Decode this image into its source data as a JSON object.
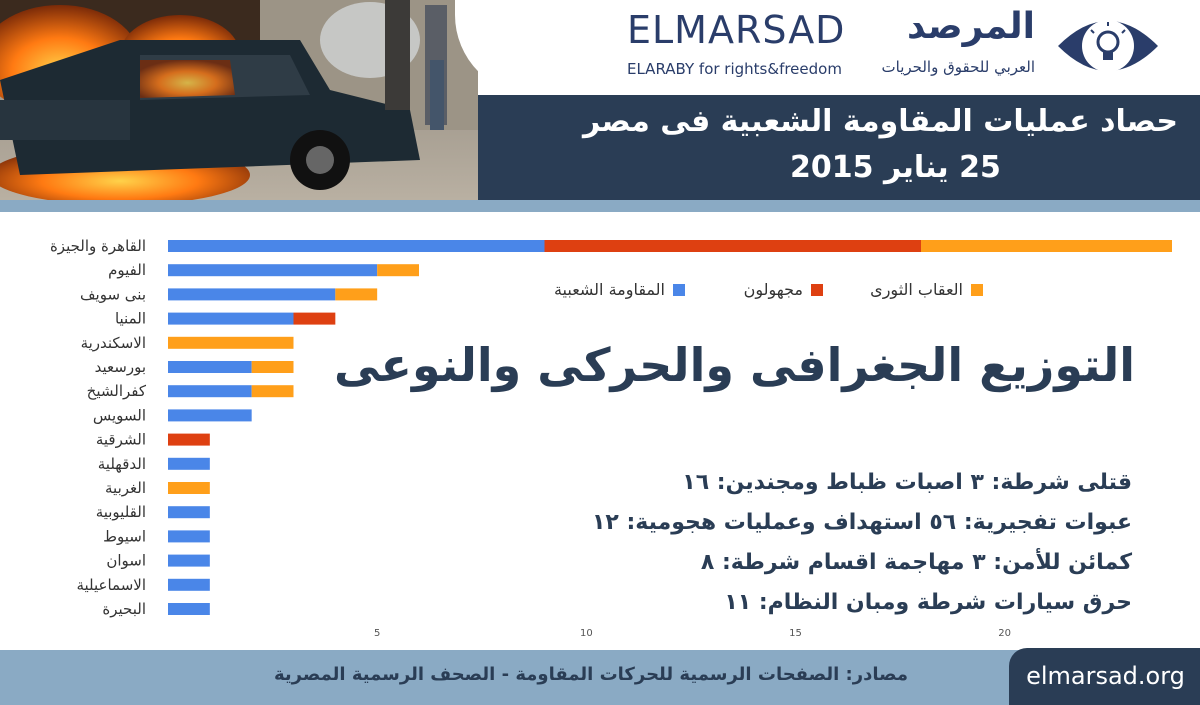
{
  "header": {
    "brand_en": "ELMARSAD",
    "brand_en_sub": "ELARABY for rights&freedom",
    "brand_ar": "المرصد",
    "brand_ar_sub": "العربي للحقوق والحريات",
    "title_line1": "حصاد عمليات المقاومة الشعبية فى مصر",
    "title_line2": "25 يناير 2015"
  },
  "subtitle": "التوزيع الجغرافى والحركى والنوعى",
  "stats": [
    "قتلى شرطة: ٣   اصبات ظباط ومجندين: ١٦",
    "عبوات تفجيرية: ٥٦   استهداف وعمليات هجومية: ١٢",
    "كمائن للأمن: ٣  مهاجمة اقسام شرطة: ٨",
    "حرق سيارات شرطة ومبان النظام: ١١"
  ],
  "footer": {
    "sources": "مصادر: الصفحات الرسمية للحركات المقاومة - الصحف الرسمية المصرية",
    "site": "elmarsad.org"
  },
  "colors": {
    "popular_resistance": "#4a86e8",
    "unknown": "#de4011",
    "revolutionary_punishment": "#ff9f1a",
    "navy": "#2a3d55"
  },
  "chart_data": {
    "type": "bar",
    "orientation": "horizontal",
    "stacked": true,
    "categories": [
      "القاهرة والجيزة",
      "الفيوم",
      "بنى سويف",
      "المنيا",
      "الاسكندرية",
      "بورسعيد",
      "كفرالشيخ",
      "السويس",
      "الشرقية",
      "الدقهلية",
      "الغربية",
      "القليوبية",
      "اسيوط",
      "اسوان",
      "الاسماعيلية",
      "البحيرة"
    ],
    "series": [
      {
        "name": "المقاومة الشعبية",
        "color": "#4a86e8",
        "values": [
          9,
          5,
          4,
          3,
          0,
          2,
          2,
          2,
          0,
          1,
          0,
          1,
          1,
          1,
          1,
          1
        ]
      },
      {
        "name": "مجهولون",
        "color": "#de4011",
        "values": [
          9,
          0,
          0,
          1,
          0,
          0,
          0,
          0,
          1,
          0,
          0,
          0,
          0,
          0,
          0,
          0
        ]
      },
      {
        "name": "العقاب الثورى",
        "color": "#ff9f1a",
        "values": [
          6,
          1,
          1,
          0,
          3,
          1,
          1,
          0,
          0,
          0,
          1,
          0,
          0,
          0,
          0,
          0
        ]
      }
    ],
    "xlim": [
      0,
      24
    ],
    "xticks": [
      5,
      10,
      15,
      20
    ],
    "legend_position": "top-right",
    "grid": false
  }
}
